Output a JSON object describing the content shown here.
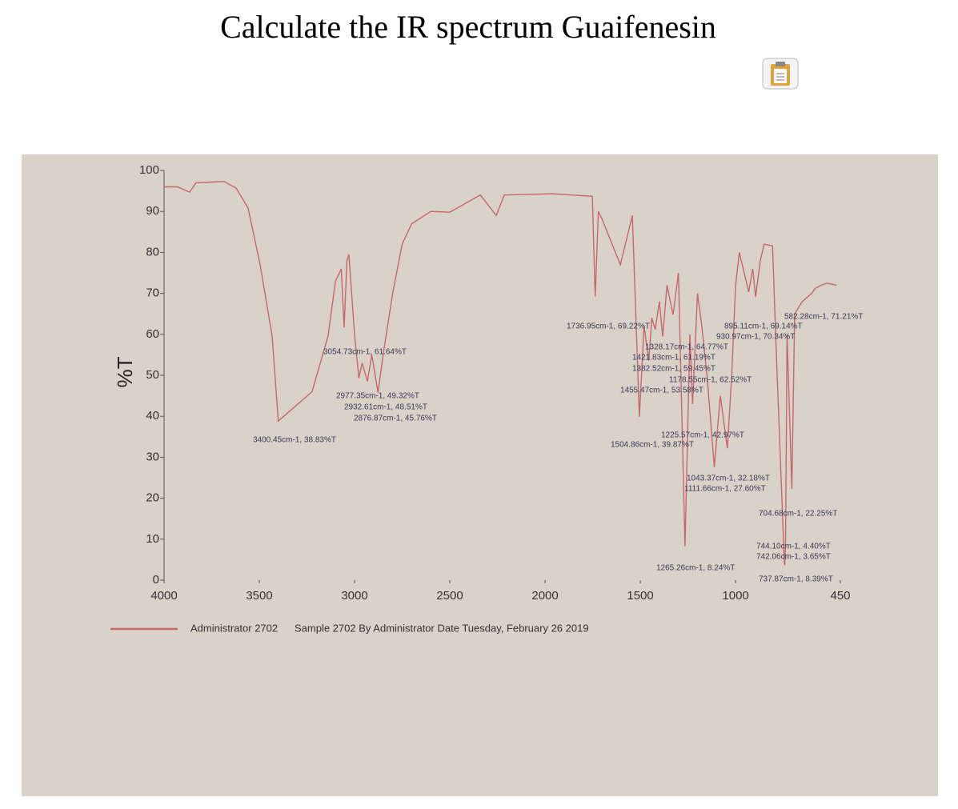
{
  "page_title": "Calculate the IR spectrum Guaifenesin",
  "chart_data": {
    "type": "line",
    "ylabel": "%T",
    "xlim": [
      4000,
      450
    ],
    "ylim": [
      0,
      100
    ],
    "xticks": [
      4000,
      3500,
      3000,
      2500,
      2000,
      1500,
      1000,
      450
    ],
    "yticks": [
      0,
      10,
      20,
      30,
      40,
      50,
      60,
      70,
      80,
      90,
      100
    ],
    "x": [
      4000,
      3929,
      3866,
      3832,
      3685,
      3622,
      3559,
      3496,
      3433,
      3400.45,
      3223,
      3139,
      3100,
      3070,
      3054.73,
      3040,
      3030,
      3000,
      2977.35,
      2960,
      2932.61,
      2910,
      2876.87,
      2850,
      2800,
      2750,
      2700,
      2600,
      2500,
      2340,
      2256,
      2214,
      1962,
      1752,
      1736.95,
      1720,
      1700,
      1605,
      1542,
      1504.86,
      1480,
      1455.47,
      1440,
      1421.83,
      1400,
      1382.52,
      1360,
      1328.17,
      1300,
      1265.26,
      1240,
      1225.57,
      1200,
      1178.55,
      1150,
      1111.66,
      1080,
      1043.37,
      1020,
      1000,
      980,
      930.97,
      910,
      895.11,
      870,
      850,
      806,
      790,
      744.1,
      742.06,
      737.87,
      730,
      704.68,
      690,
      650,
      600,
      582.28,
      550,
      520,
      470
    ],
    "series": [
      {
        "name": "Administrator 2702",
        "color": "#c9666d",
        "values": [
          96,
          96,
          94.7,
          97,
          97.3,
          95.7,
          90.8,
          77,
          59.6,
          38.83,
          46,
          59.6,
          73,
          76,
          61.64,
          78,
          79.5,
          60,
          49.32,
          53,
          48.51,
          55,
          45.76,
          55,
          70,
          82,
          87,
          90,
          89.8,
          94,
          89,
          94,
          94.3,
          93.7,
          69.22,
          90,
          88,
          77,
          89,
          39.87,
          62,
          53.58,
          64,
          61.19,
          68,
          59.45,
          72,
          64.77,
          75,
          8.24,
          60,
          42.97,
          70,
          62.52,
          50,
          27.6,
          45,
          32.18,
          50,
          72,
          80,
          70.34,
          76,
          69.14,
          78,
          82,
          81.6,
          60,
          4.4,
          3.65,
          8.39,
          60,
          22.25,
          65,
          68,
          70,
          71.21,
          72,
          72.5,
          72
        ]
      }
    ],
    "annotations": [
      "3400.45cm-1, 38.83%T",
      "3054.73cm-1, 61.64%T",
      "2977.35cm-1, 49.32%T",
      "2932.61cm-1, 48.51%T",
      "2876.87cm-1, 45.76%T",
      "1736.95cm-1, 69.22%T",
      "1328.17cm-1, 64.77%T",
      "1421.83cm-1, 61.19%T",
      "1382.52cm-1, 59.45%T",
      "1178.55cm-1, 62.52%T",
      "1455.47cm-1, 53.58%T",
      "1225.57cm-1, 42.97%T",
      "1504.86cm-1, 39.87%T",
      "1043.37cm-1, 32.18%T",
      "1111.66cm-1, 27.60%T",
      "895.11cm-1, 69.14%T",
      "930.97cm-1, 70.34%T",
      "582.28cm-1, 71.21%T",
      "704.68cm-1, 22.25%T",
      "744.10cm-1, 4.40%T",
      "742.06cm-1, 3.65%T",
      "737.87cm-1, 8.39%T",
      "1265.26cm-1, 8.24%T"
    ],
    "footer": "Sample 2702 By Administrator Date Tuesday, February 26 2019"
  }
}
